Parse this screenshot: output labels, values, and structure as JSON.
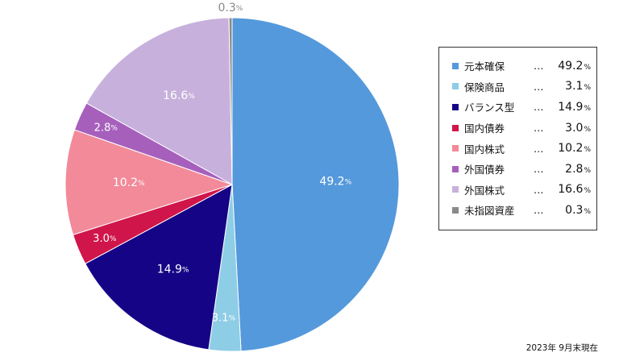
{
  "chart_data": {
    "type": "pie",
    "categories": [
      "元本確保",
      "保険商品",
      "バランス型",
      "国内債券",
      "国内株式",
      "外国債券",
      "外国株式",
      "未指図資産"
    ],
    "values": [
      49.2,
      3.1,
      14.9,
      3.0,
      10.2,
      2.8,
      16.6,
      0.3
    ],
    "value_labels": [
      "49.2",
      "3.1",
      "14.9",
      "3.0",
      "10.2",
      "2.8",
      "16.6",
      "0.3"
    ],
    "unit": "%",
    "colors": [
      "#5499DB",
      "#8ECDE6",
      "#150486",
      "#D0154A",
      "#F28A99",
      "#A660BC",
      "#C7B1DC",
      "#8A8A8A"
    ],
    "label_colors": [
      "#ffffff",
      "#ffffff",
      "#ffffff",
      "#ffffff",
      "#ffffff",
      "#ffffff",
      "#ffffff",
      "#888888"
    ],
    "start_angle_deg": 0,
    "direction": "clockwise",
    "legend_position": "right",
    "legend_separator": "…"
  },
  "footnote": "2023年 9月末現在"
}
